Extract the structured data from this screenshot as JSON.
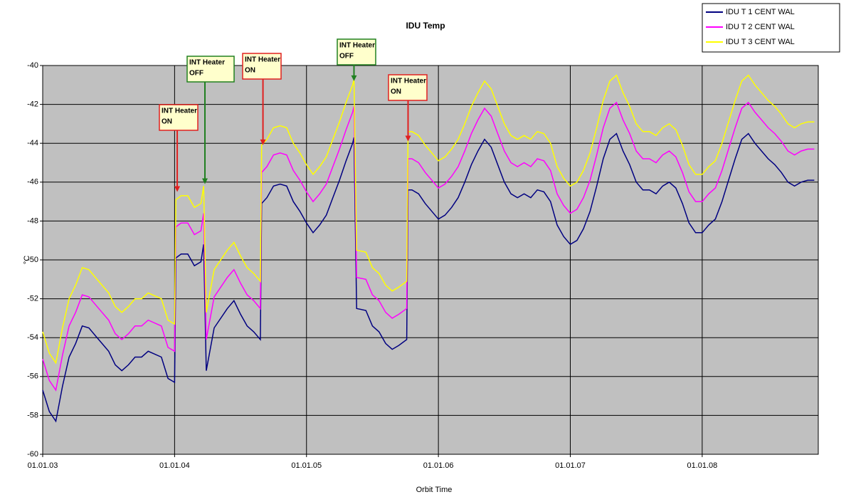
{
  "chart_data": {
    "type": "line",
    "title": "IDU Temp",
    "x_label": "Orbit Time",
    "y_label": "°C",
    "x": [
      2003.0,
      2003.05,
      2003.1,
      2003.15,
      2003.2,
      2003.25,
      2003.3,
      2003.35,
      2003.4,
      2003.45,
      2003.5,
      2003.55,
      2003.6,
      2003.65,
      2003.7,
      2003.75,
      2003.8,
      2003.9,
      2003.95,
      2004.0,
      2004.01,
      2004.05,
      2004.1,
      2004.15,
      2004.2,
      2004.22,
      2004.24,
      2004.3,
      2004.4,
      2004.45,
      2004.5,
      2004.55,
      2004.6,
      2004.65,
      2004.66,
      2004.7,
      2004.75,
      2004.8,
      2004.85,
      2004.9,
      2004.95,
      2005.0,
      2005.05,
      2005.1,
      2005.15,
      2005.2,
      2005.25,
      2005.3,
      2005.35,
      2005.36,
      2005.38,
      2005.45,
      2005.5,
      2005.55,
      2005.6,
      2005.65,
      2005.7,
      2005.76,
      2005.77,
      2005.8,
      2005.85,
      2005.9,
      2005.95,
      2006.0,
      2006.05,
      2006.1,
      2006.15,
      2006.2,
      2006.25,
      2006.3,
      2006.35,
      2006.4,
      2006.45,
      2006.5,
      2006.55,
      2006.6,
      2006.65,
      2006.7,
      2006.75,
      2006.8,
      2006.85,
      2006.9,
      2006.95,
      2007.0,
      2007.05,
      2007.1,
      2007.15,
      2007.2,
      2007.25,
      2007.3,
      2007.35,
      2007.4,
      2007.45,
      2007.5,
      2007.55,
      2007.6,
      2007.65,
      2007.7,
      2007.75,
      2007.8,
      2007.85,
      2007.9,
      2007.95,
      2008.0,
      2008.05,
      2008.1,
      2008.15,
      2008.2,
      2008.25,
      2008.3,
      2008.35,
      2008.4,
      2008.45,
      2008.5,
      2008.55,
      2008.6,
      2008.65,
      2008.7,
      2008.75,
      2008.8,
      2008.85
    ],
    "series": [
      {
        "name": "IDU T 1 CENT WAL",
        "color": "#000080",
        "values": [
          -56.7,
          -57.8,
          -58.3,
          -56.5,
          -55,
          -54.3,
          -53.4,
          -53.5,
          -53.9,
          -54.3,
          -54.7,
          -55.4,
          -55.7,
          -55.4,
          -55,
          -55,
          -54.7,
          -55,
          -56.1,
          -56.3,
          -49.9,
          -49.7,
          -49.7,
          -50.3,
          -50.1,
          -49.2,
          -55.7,
          -53.5,
          -52.5,
          -52.1,
          -52.8,
          -53.4,
          -53.7,
          -54.1,
          -47.1,
          -46.8,
          -46.2,
          -46.1,
          -46.2,
          -47,
          -47.5,
          -48.1,
          -48.6,
          -48.2,
          -47.7,
          -46.8,
          -45.9,
          -44.9,
          -44,
          -43.7,
          -52.5,
          -52.6,
          -53.4,
          -53.7,
          -54.3,
          -54.6,
          -54.4,
          -54.1,
          -46.4,
          -46.4,
          -46.6,
          -47.1,
          -47.5,
          -47.9,
          -47.7,
          -47.3,
          -46.8,
          -46,
          -45.1,
          -44.4,
          -43.8,
          -44.2,
          -45.1,
          -46,
          -46.6,
          -46.8,
          -46.6,
          -46.8,
          -46.4,
          -46.5,
          -47,
          -48.2,
          -48.8,
          -49.2,
          -49,
          -48.4,
          -47.5,
          -46.2,
          -44.8,
          -43.8,
          -43.5,
          -44.4,
          -45.1,
          -46,
          -46.4,
          -46.4,
          -46.6,
          -46.2,
          -46,
          -46.3,
          -47.1,
          -48.1,
          -48.6,
          -48.6,
          -48.2,
          -47.9,
          -47,
          -45.9,
          -44.8,
          -43.8,
          -43.5,
          -44,
          -44.4,
          -44.8,
          -45.1,
          -45.5,
          -46,
          -46.2,
          -46,
          -45.9,
          -45.9
        ]
      },
      {
        "name": "IDU T 2 CENT WAL",
        "color": "#ff00ff",
        "values": [
          -55.1,
          -56.2,
          -56.7,
          -54.9,
          -53.4,
          -52.7,
          -51.8,
          -51.9,
          -52.3,
          -52.7,
          -53.1,
          -53.8,
          -54.1,
          -53.8,
          -53.4,
          -53.4,
          -53.1,
          -53.4,
          -54.5,
          -54.7,
          -48.3,
          -48.1,
          -48.1,
          -48.7,
          -48.5,
          -47.6,
          -54.1,
          -51.9,
          -50.9,
          -50.5,
          -51.2,
          -51.8,
          -52.1,
          -52.5,
          -45.5,
          -45.2,
          -44.6,
          -44.5,
          -44.6,
          -45.4,
          -45.9,
          -46.5,
          -47,
          -46.6,
          -46.1,
          -45.2,
          -44.3,
          -43.3,
          -42.4,
          -42.1,
          -50.9,
          -51,
          -51.8,
          -52.1,
          -52.7,
          -53,
          -52.8,
          -52.5,
          -44.8,
          -44.8,
          -45,
          -45.5,
          -45.9,
          -46.3,
          -46.1,
          -45.7,
          -45.2,
          -44.4,
          -43.5,
          -42.8,
          -42.2,
          -42.6,
          -43.5,
          -44.4,
          -45,
          -45.2,
          -45,
          -45.2,
          -44.8,
          -44.9,
          -45.4,
          -46.6,
          -47.2,
          -47.6,
          -47.4,
          -46.8,
          -45.9,
          -44.6,
          -43.2,
          -42.2,
          -41.9,
          -42.8,
          -43.5,
          -44.4,
          -44.8,
          -44.8,
          -45,
          -44.6,
          -44.4,
          -44.7,
          -45.5,
          -46.5,
          -47,
          -47,
          -46.6,
          -46.3,
          -45.4,
          -44.3,
          -43.2,
          -42.2,
          -41.9,
          -42.4,
          -42.8,
          -43.2,
          -43.5,
          -43.9,
          -44.4,
          -44.6,
          -44.4,
          -44.3,
          -44.3
        ]
      },
      {
        "name": "IDU T 3 CENT WAL",
        "color": "#ffff00",
        "values": [
          -53.7,
          -54.8,
          -55.3,
          -53.5,
          -52,
          -51.3,
          -50.4,
          -50.5,
          -50.9,
          -51.3,
          -51.7,
          -52.4,
          -52.7,
          -52.4,
          -52,
          -52,
          -51.7,
          -52,
          -53.1,
          -53.3,
          -46.9,
          -46.7,
          -46.7,
          -47.3,
          -47.1,
          -46.2,
          -52.7,
          -50.5,
          -49.5,
          -49.1,
          -49.8,
          -50.4,
          -50.7,
          -51.1,
          -44.1,
          -43.8,
          -43.2,
          -43.1,
          -43.2,
          -44,
          -44.5,
          -45.1,
          -45.6,
          -45.2,
          -44.7,
          -43.8,
          -42.9,
          -41.9,
          -41,
          -40.7,
          -49.5,
          -49.6,
          -50.4,
          -50.7,
          -51.3,
          -51.6,
          -51.4,
          -51.1,
          -43.4,
          -43.4,
          -43.6,
          -44.1,
          -44.5,
          -44.9,
          -44.7,
          -44.3,
          -43.8,
          -43,
          -42.1,
          -41.4,
          -40.8,
          -41.2,
          -42.1,
          -43,
          -43.6,
          -43.8,
          -43.6,
          -43.8,
          -43.4,
          -43.5,
          -44,
          -45.2,
          -45.8,
          -46.2,
          -46,
          -45.4,
          -44.5,
          -43.2,
          -41.8,
          -40.8,
          -40.5,
          -41.4,
          -42.1,
          -43,
          -43.4,
          -43.4,
          -43.6,
          -43.2,
          -43,
          -43.3,
          -44.1,
          -45.1,
          -45.6,
          -45.6,
          -45.2,
          -44.9,
          -44,
          -42.9,
          -41.8,
          -40.8,
          -40.5,
          -41,
          -41.4,
          -41.8,
          -42.1,
          -42.5,
          -43,
          -43.2,
          -43,
          -42.9,
          -42.9
        ]
      }
    ],
    "xlim": [
      2003.0,
      2008.88
    ],
    "xticks": [
      {
        "value": 2003,
        "label": "01.01.03"
      },
      {
        "value": 2004,
        "label": "01.01.04"
      },
      {
        "value": 2005,
        "label": "01.01.05"
      },
      {
        "value": 2006,
        "label": "01.01.06"
      },
      {
        "value": 2007,
        "label": "01.01.07"
      },
      {
        "value": 2008,
        "label": "01.01.08"
      }
    ],
    "ylim": [
      -60,
      -40
    ],
    "yticks": [
      -60,
      -58,
      -56,
      -54,
      -52,
      -50,
      -48,
      -46,
      -44,
      -42,
      -40
    ],
    "grid": true,
    "legend": "top-right",
    "annotations": [
      {
        "lines": [
          "INT Heater",
          "ON"
        ],
        "x": 2004.02,
        "y": -46.5,
        "color": "#e02020"
      },
      {
        "lines": [
          "INT Heater",
          "OFF"
        ],
        "x": 2004.23,
        "y": -46.1,
        "color": "#208020"
      },
      {
        "lines": [
          "INT Heater",
          "ON"
        ],
        "x": 2004.67,
        "y": -44.1,
        "color": "#e02020"
      },
      {
        "lines": [
          "INT Heater",
          "OFF"
        ],
        "x": 2005.36,
        "y": -40.8,
        "color": "#208020"
      },
      {
        "lines": [
          "INT Heater",
          "ON"
        ],
        "x": 2005.77,
        "y": -43.9,
        "color": "#e02020"
      }
    ]
  }
}
